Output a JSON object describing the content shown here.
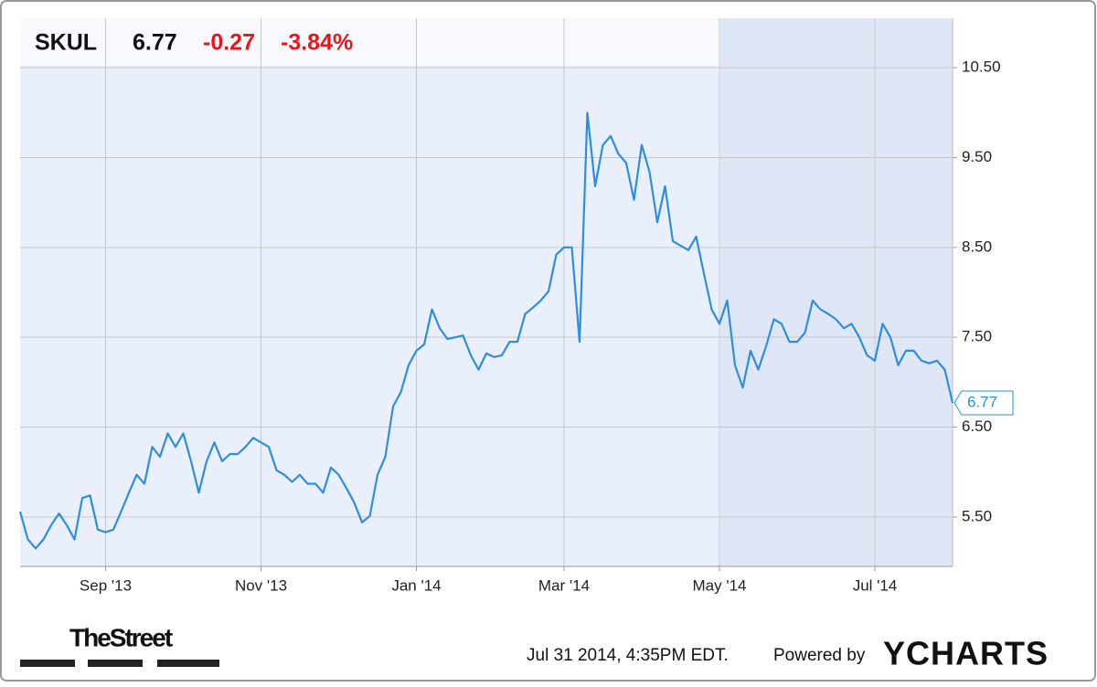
{
  "chart_data": {
    "type": "line",
    "ticker": "SKUL",
    "price": "6.77",
    "change": "-0.27",
    "change_pct": "-3.84%",
    "categories": [
      null,
      null,
      null,
      null,
      null,
      null,
      null,
      null,
      null,
      null,
      null,
      "Sep '13",
      null,
      null,
      null,
      null,
      null,
      null,
      null,
      null,
      null,
      null,
      null,
      null,
      null,
      null,
      null,
      null,
      null,
      null,
      null,
      "Nov '13",
      null,
      null,
      null,
      null,
      null,
      null,
      null,
      null,
      null,
      null,
      null,
      null,
      null,
      null,
      null,
      null,
      null,
      null,
      null,
      "Jan '14",
      null,
      null,
      null,
      null,
      null,
      null,
      null,
      null,
      null,
      null,
      null,
      null,
      null,
      null,
      null,
      null,
      null,
      null,
      "Mar '14",
      null,
      null,
      null,
      null,
      null,
      null,
      null,
      null,
      null,
      null,
      null,
      null,
      null,
      null,
      null,
      null,
      null,
      null,
      null,
      "May '14",
      null,
      null,
      null,
      null,
      null,
      null,
      null,
      null,
      null,
      null,
      null,
      null,
      null,
      null,
      null,
      null,
      null,
      null,
      null,
      "Jul '14",
      null,
      null,
      null,
      null,
      null,
      null,
      null,
      null,
      null,
      null
    ],
    "series": [
      {
        "name": "SKUL",
        "color": "#2f8de0",
        "values": [
          5.56,
          5.25,
          5.15,
          5.25,
          5.41,
          5.54,
          5.41,
          5.25,
          5.71,
          5.74,
          5.36,
          5.33,
          5.36,
          5.56,
          5.77,
          5.97,
          5.87,
          6.28,
          6.17,
          6.43,
          6.28,
          6.43,
          6.12,
          5.77,
          6.12,
          6.33,
          6.12,
          6.2,
          6.2,
          6.28,
          6.38,
          6.33,
          6.28,
          6.02,
          5.97,
          5.89,
          5.97,
          5.87,
          5.87,
          5.77,
          6.05,
          5.97,
          5.82,
          5.66,
          5.44,
          5.51,
          5.97,
          6.17,
          6.73,
          6.89,
          7.19,
          7.35,
          7.42,
          7.81,
          7.6,
          7.48,
          7.5,
          7.52,
          7.3,
          7.14,
          7.32,
          7.28,
          7.3,
          7.45,
          7.45,
          7.76,
          7.83,
          7.91,
          8.01,
          8.42,
          8.5,
          8.5,
          7.45,
          10.0,
          9.18,
          9.64,
          9.74,
          9.54,
          9.44,
          9.03,
          9.64,
          9.34,
          8.78,
          9.18,
          8.57,
          8.52,
          8.47,
          8.62,
          8.21,
          7.81,
          7.65,
          7.91,
          7.19,
          6.94,
          7.35,
          7.14,
          7.4,
          7.7,
          7.65,
          7.45,
          7.45,
          7.55,
          7.91,
          7.81,
          7.76,
          7.7,
          7.6,
          7.65,
          7.5,
          7.3,
          7.24,
          7.65,
          7.5,
          7.19,
          7.35,
          7.35,
          7.24,
          7.21,
          7.24,
          7.14,
          6.77
        ]
      }
    ],
    "ylim": [
      4.95,
      11.05
    ],
    "yticks": [
      {
        "value": 5.5,
        "label": "5.50"
      },
      {
        "value": 6.5,
        "label": "6.50"
      },
      {
        "value": 7.5,
        "label": "7.50"
      },
      {
        "value": 8.5,
        "label": "8.50"
      },
      {
        "value": 9.5,
        "label": "9.50"
      },
      {
        "value": 10.5,
        "label": "10.50"
      }
    ],
    "grid": true
  },
  "footer": {
    "brand": "TheStreet",
    "timestamp": "Jul 31 2014, 4:35PM EDT.",
    "powered_by": "Powered by",
    "provider": "YCHARTS"
  }
}
